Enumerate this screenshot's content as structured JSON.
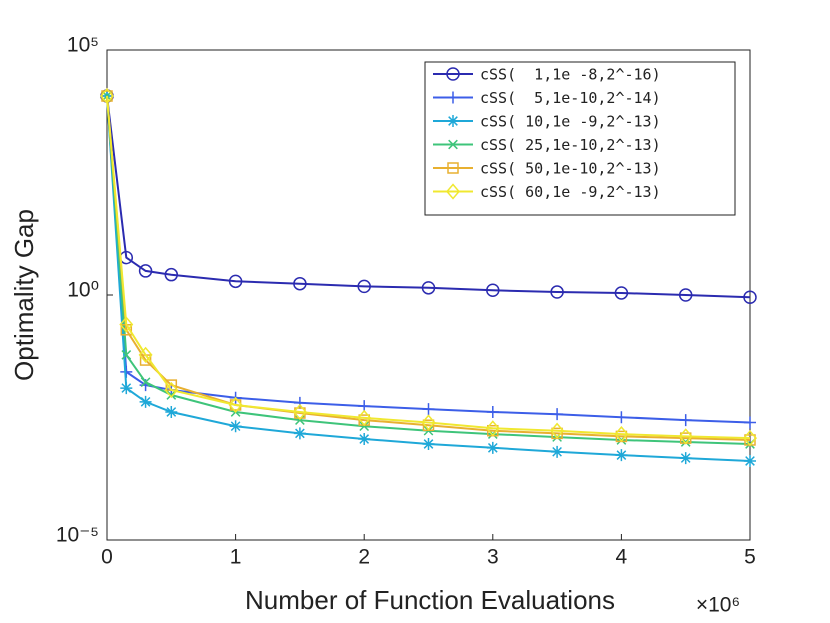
{
  "chart_data": {
    "type": "line",
    "x_label": "Number of Function Evaluations",
    "x_axis_multiplier": "×10⁶",
    "y_label": "Optimality Gap",
    "log_y": true,
    "xlim": [
      0,
      5
    ],
    "xticks": [
      0,
      1,
      2,
      3,
      4,
      5
    ],
    "ylim": [
      1e-05,
      100000
    ],
    "yticks": [
      {
        "value": 1e-05,
        "label": "10⁻⁵"
      },
      {
        "value": 1,
        "label": "10⁰"
      },
      {
        "value": 100000,
        "label": "10⁵"
      }
    ],
    "legend": "top-right",
    "x": [
      0,
      0.15,
      0.3,
      0.5,
      1,
      1.5,
      2,
      2.5,
      3,
      3.5,
      4,
      4.5,
      5
    ],
    "series": [
      {
        "name": "cSS(  1,1e -8,2^-16)",
        "color": "#2b2bb0",
        "marker": "o",
        "values": [
          11500,
          5.8,
          3.1,
          2.6,
          1.9,
          1.7,
          1.5,
          1.4,
          1.25,
          1.15,
          1.1,
          1.0,
          0.9
        ]
      },
      {
        "name": "cSS(  5,1e-10,2^-14)",
        "color": "#3c5ee8",
        "marker": "+",
        "values": [
          11500,
          0.027,
          0.0145,
          0.0115,
          0.008,
          0.0063,
          0.0054,
          0.0047,
          0.0041,
          0.0037,
          0.0032,
          0.0028,
          0.0025
        ]
      },
      {
        "name": "cSS( 10,1e -9,2^-13)",
        "color": "#1fa8d8",
        "marker": "*",
        "values": [
          11500,
          0.0126,
          0.0066,
          0.0041,
          0.0021,
          0.0015,
          0.00115,
          0.00091,
          0.00076,
          0.00063,
          0.00054,
          0.00047,
          0.00041
        ]
      },
      {
        "name": "cSS( 25,1e-10,2^-13)",
        "color": "#3ec47a",
        "marker": "x",
        "values": [
          11500,
          0.06,
          0.0166,
          0.0091,
          0.0041,
          0.0028,
          0.0021,
          0.0017,
          0.00145,
          0.00126,
          0.0011,
          0.001,
          0.00091
        ]
      },
      {
        "name": "cSS( 50,1e-10,2^-13)",
        "color": "#e8b030",
        "marker": "s",
        "values": [
          11500,
          0.195,
          0.047,
          0.0145,
          0.0057,
          0.0039,
          0.0028,
          0.0022,
          0.0017,
          0.0015,
          0.0013,
          0.0012,
          0.0011
        ]
      },
      {
        "name": "cSS( 60,1e -9,2^-13)",
        "color": "#f0e830",
        "marker": "d",
        "values": [
          11500,
          0.25,
          0.06,
          0.0115,
          0.0057,
          0.0041,
          0.0031,
          0.0025,
          0.0019,
          0.0017,
          0.00145,
          0.0013,
          0.0012
        ]
      }
    ]
  }
}
